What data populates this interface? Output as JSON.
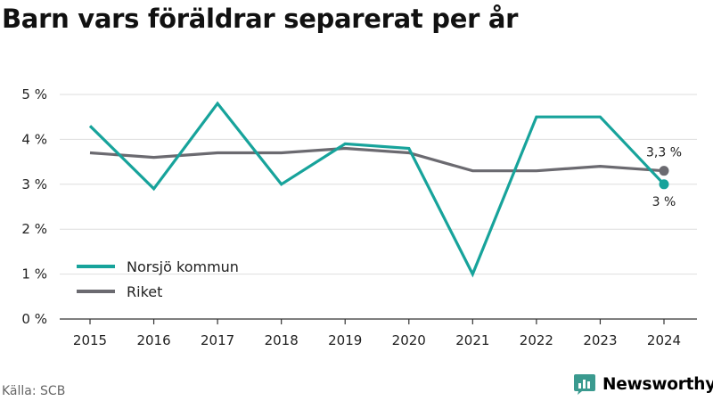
{
  "title": "Barn vars föräldrar separerat per år",
  "source": "Källa: SCB",
  "brand": {
    "name": "Newsworthy",
    "color": "#3a9a8f",
    "icon": "newsworthy-logo-icon"
  },
  "chart_data": {
    "type": "line",
    "title": "Barn vars föräldrar separerat per år",
    "xlabel": "",
    "ylabel": "",
    "categories": [
      "2015",
      "2016",
      "2017",
      "2018",
      "2019",
      "2020",
      "2021",
      "2022",
      "2023",
      "2024"
    ],
    "series": [
      {
        "name": "Norsjö kommun",
        "color": "#17a39b",
        "values": [
          4.3,
          2.9,
          4.8,
          3.0,
          3.9,
          3.8,
          1.0,
          4.5,
          4.5,
          3.0
        ],
        "end_label": "3 %"
      },
      {
        "name": "Riket",
        "color": "#6b6a70",
        "values": [
          3.7,
          3.6,
          3.7,
          3.7,
          3.8,
          3.7,
          3.3,
          3.3,
          3.4,
          3.3
        ],
        "end_label": "3,3 %"
      }
    ],
    "ylim": [
      0,
      5
    ],
    "yticks": [
      0,
      1,
      2,
      3,
      4,
      5
    ],
    "ytick_labels": [
      "0 %",
      "1 %",
      "2 %",
      "3 %",
      "4 %",
      "5 %"
    ],
    "grid": true,
    "legend": "bottom-left"
  }
}
